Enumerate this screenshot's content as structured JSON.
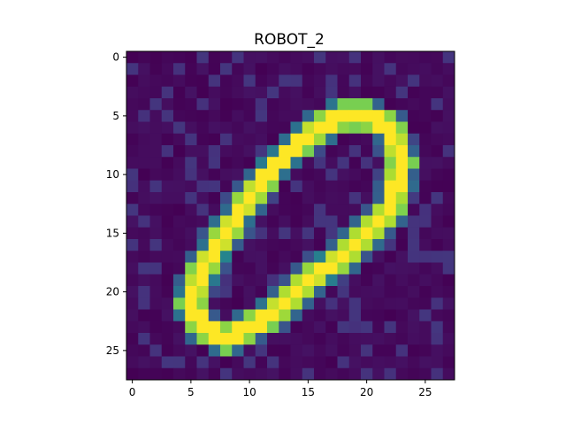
{
  "chart_data": {
    "type": "heatmap",
    "title": "ROBOT_2",
    "xlabel": "",
    "ylabel": "",
    "grid": false,
    "colormap": "viridis",
    "rows": 28,
    "cols": 28,
    "xlim": [
      -0.5,
      27.5
    ],
    "ylim": [
      27.5,
      -0.5
    ],
    "x_ticks": [
      0,
      5,
      10,
      15,
      20,
      25
    ],
    "y_ticks": [
      0,
      5,
      10,
      15,
      20,
      25
    ],
    "value_range": [
      0,
      1
    ],
    "image_description": "28x28 grayscale-style intensity map of a handwritten digit zero, slanted to the right",
    "strokes": [
      {
        "from": [
          20,
          5
        ],
        "to": [
          22,
          6
        ]
      },
      {
        "from": [
          22,
          6
        ],
        "to": [
          23,
          9
        ]
      },
      {
        "from": [
          23,
          9
        ],
        "to": [
          22,
          13
        ]
      },
      {
        "from": [
          22,
          13
        ],
        "to": [
          20,
          15
        ]
      },
      {
        "from": [
          20,
          15
        ],
        "to": [
          18,
          17
        ]
      },
      {
        "from": [
          18,
          17
        ],
        "to": [
          15,
          19
        ]
      },
      {
        "from": [
          15,
          19
        ],
        "to": [
          13,
          21
        ]
      },
      {
        "from": [
          13,
          21
        ],
        "to": [
          11,
          22.5
        ]
      },
      {
        "from": [
          11,
          22.5
        ],
        "to": [
          8,
          24
        ]
      },
      {
        "from": [
          8,
          24
        ],
        "to": [
          6,
          23
        ]
      },
      {
        "from": [
          6,
          23
        ],
        "to": [
          5,
          21
        ]
      },
      {
        "from": [
          5,
          21
        ],
        "to": [
          6,
          18
        ]
      },
      {
        "from": [
          6,
          18
        ],
        "to": [
          8,
          15
        ]
      },
      {
        "from": [
          8,
          15
        ],
        "to": [
          10,
          12
        ]
      },
      {
        "from": [
          10,
          12
        ],
        "to": [
          12,
          9.5
        ]
      },
      {
        "from": [
          12,
          9.5
        ],
        "to": [
          14,
          7.5
        ]
      },
      {
        "from": [
          14,
          7.5
        ],
        "to": [
          16,
          6
        ]
      },
      {
        "from": [
          16,
          6
        ],
        "to": [
          18,
          5
        ]
      },
      {
        "from": [
          18,
          5
        ],
        "to": [
          20,
          5
        ]
      }
    ]
  }
}
